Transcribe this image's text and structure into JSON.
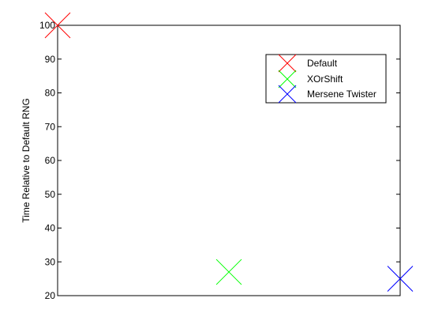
{
  "chart_data": {
    "type": "scatter",
    "title": "",
    "xlabel": "",
    "ylabel": "Time Relative to Default RNG",
    "xlim": [
      1,
      3
    ],
    "ylim": [
      20,
      100
    ],
    "yticks": [
      20,
      30,
      40,
      50,
      60,
      70,
      80,
      90,
      100
    ],
    "grid": false,
    "legend_position": "top-right",
    "marker": "x",
    "series": [
      {
        "name": "Default",
        "color": "#ff0000",
        "x": [
          1
        ],
        "y": [
          100
        ]
      },
      {
        "name": "XOrShift",
        "color": "#00ff00",
        "x": [
          2
        ],
        "y": [
          27
        ]
      },
      {
        "name": "Mersene Twister",
        "color": "#0000ff",
        "x": [
          3
        ],
        "y": [
          25
        ]
      }
    ]
  }
}
